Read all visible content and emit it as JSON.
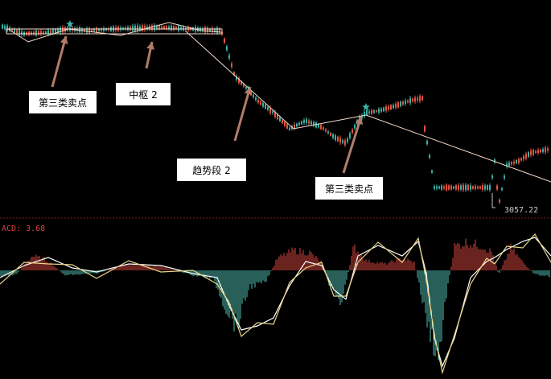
{
  "colors": {
    "background": "#000000",
    "up_candle": "#e5543f",
    "down_candle": "#39b2a6",
    "trend_line": "#f5d9c8",
    "arrow": "#b27d68",
    "divider": "#7a1f1f",
    "macd_pos": "#d6463e",
    "macd_neg": "#4fc0b2",
    "dif_line": "#ffffff",
    "dea_line": "#e8d58a",
    "star": "#3fb3ae"
  },
  "annotations": {
    "sell_point_1": "第三类卖点",
    "center_2": "中枢 2",
    "trend_segment_2": "趋势段 2",
    "sell_point_2": "第三类卖点"
  },
  "price_low_label": "3057.22",
  "macd_label": "ACD: 3.68",
  "chart_data": [
    {
      "type": "candlestick",
      "title": "",
      "price_low_marker": 3057.22,
      "trend_line_points": [
        "start",
        "peak",
        "decline",
        "rebound",
        "decline"
      ],
      "ylim": [
        3000,
        3700
      ],
      "grid": false
    },
    {
      "type": "bar",
      "title": "",
      "indicator": "MACD",
      "current_value": 3.68,
      "series": [
        {
          "values": []
        },
        {
          "values": []
        }
      ]
    }
  ]
}
